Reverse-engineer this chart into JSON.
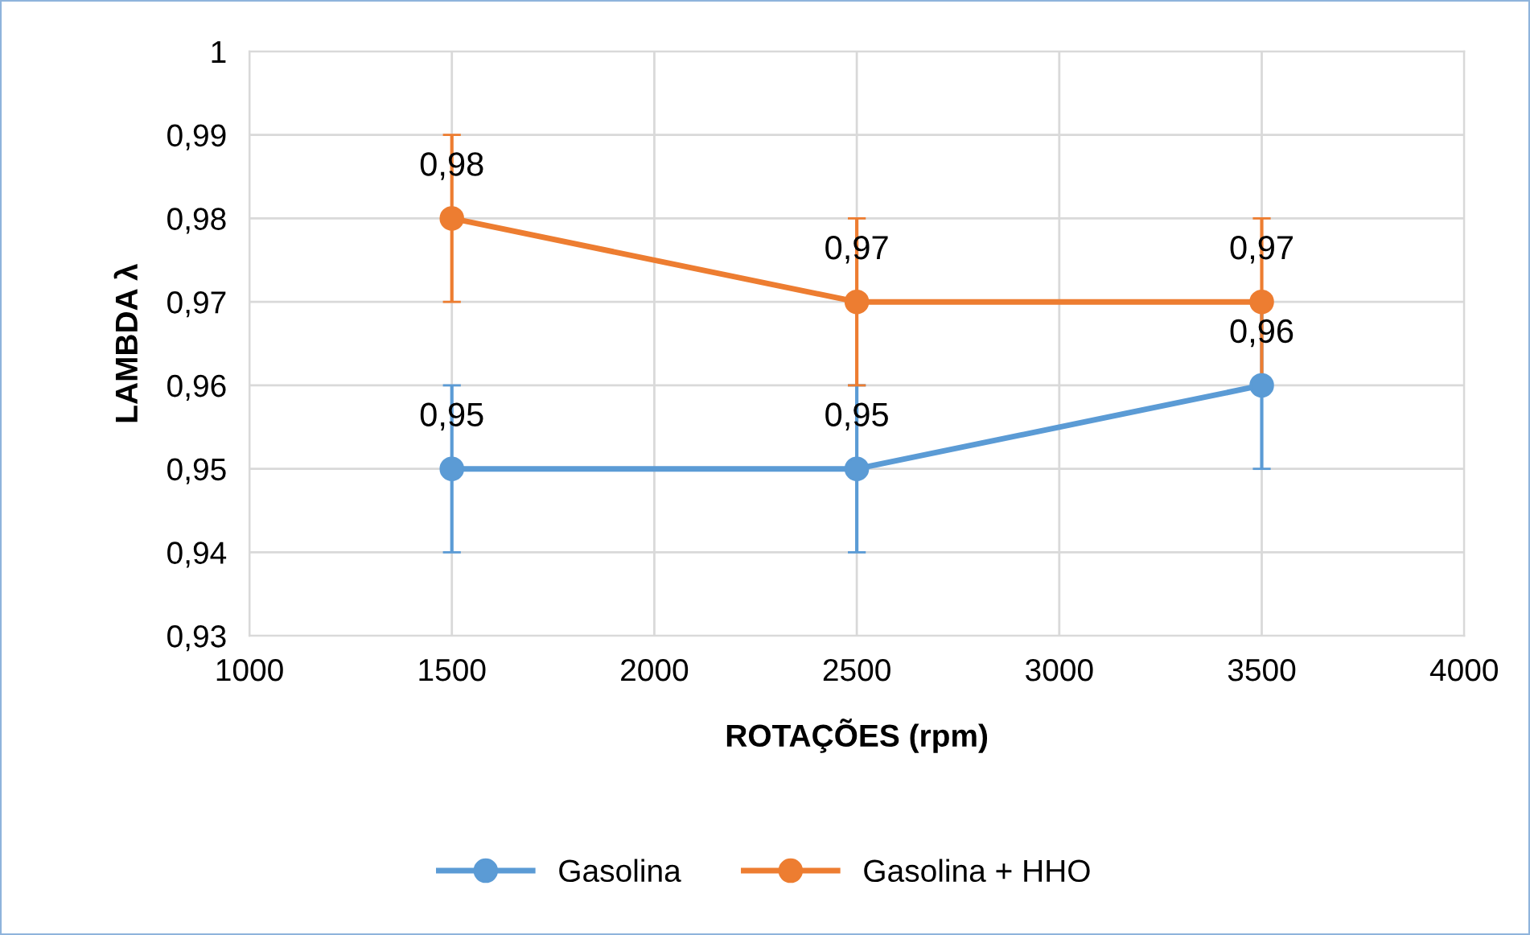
{
  "chart_data": {
    "type": "line",
    "xlabel": "ROTAÇÕES (rpm)",
    "ylabel": "LAMBDA λ",
    "xlim": [
      1000,
      4000
    ],
    "xticks": [
      1000,
      1500,
      2000,
      2500,
      3000,
      3500,
      4000
    ],
    "ylim": [
      0.93,
      1
    ],
    "yticks": [
      {
        "value": 0.93,
        "label": "0,93"
      },
      {
        "value": 0.94,
        "label": "0,94"
      },
      {
        "value": 0.95,
        "label": "0,95"
      },
      {
        "value": 0.96,
        "label": "0,96"
      },
      {
        "value": 0.97,
        "label": "0,97"
      },
      {
        "value": 0.98,
        "label": "0,98"
      },
      {
        "value": 0.99,
        "label": "0,99"
      },
      {
        "value": 1,
        "label": "1"
      }
    ],
    "grid": true,
    "legend": "bottom",
    "marker": "circle",
    "line_style": "solid",
    "series": [
      {
        "name": "Gasolina",
        "color": "#5b9bd5",
        "x": [
          1500,
          2500,
          3500
        ],
        "values": [
          0.95,
          0.95,
          0.96
        ],
        "errors": [
          0.01,
          0.01,
          0.01
        ],
        "value_labels": [
          "0,95",
          "0,95",
          "0,96"
        ]
      },
      {
        "name": "Gasolina + HHO",
        "color": "#ed7d31",
        "x": [
          1500,
          2500,
          3500
        ],
        "values": [
          0.98,
          0.97,
          0.97
        ],
        "errors": [
          0.01,
          0.01,
          0.01
        ],
        "value_labels": [
          "0,98",
          "0,97",
          "0,97"
        ]
      }
    ]
  }
}
